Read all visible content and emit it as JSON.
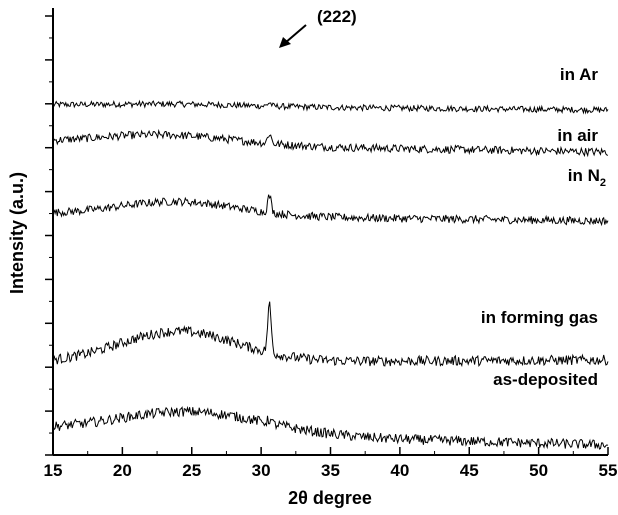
{
  "chart_data": {
    "type": "line",
    "xlabel": "2θ degree",
    "ylabel": "Intensity (a.u.)",
    "xlim": [
      15,
      55
    ],
    "x_ticks": [
      15,
      20,
      25,
      30,
      35,
      40,
      45,
      50,
      55
    ],
    "y_ticks": "unlabeled",
    "grid": false,
    "legend": "none",
    "line_color": "#000000",
    "peak_annotation": {
      "label": "(222)",
      "x": 30.6
    },
    "series": [
      {
        "name": "in Ar",
        "baseline_start": 23,
        "baseline_end": 18,
        "hump_center": 24,
        "hump_width": 7,
        "hump_height": 2,
        "peak_x": 30.6,
        "peak_height": 3.5,
        "noise": 3
      },
      {
        "name": "in air",
        "baseline_start": 27,
        "baseline_end": 18,
        "hump_center": 23,
        "hump_width": 7,
        "hump_height": 10,
        "peak_x": 30.6,
        "peak_height": 10,
        "noise": 4
      },
      {
        "name": "in N",
        "subscript": "2",
        "baseline_start": 21,
        "baseline_end": 14,
        "hump_center": 24,
        "hump_width": 6,
        "hump_height": 14,
        "peak_x": 30.6,
        "peak_height": 17,
        "noise": 4
      },
      {
        "name": "in forming gas",
        "baseline_start": 15,
        "baseline_end": 18,
        "hump_center": 24,
        "hump_width": 6,
        "hump_height": 31,
        "peak_x": 30.6,
        "peak_height": 48,
        "noise": 5
      },
      {
        "name": "as-deposited",
        "baseline_start": 25,
        "baseline_end": 10,
        "hump_center": 25,
        "hump_width": 7.5,
        "hump_height": 22,
        "peak_x": 30.6,
        "peak_height": 4,
        "noise": 5
      }
    ]
  }
}
